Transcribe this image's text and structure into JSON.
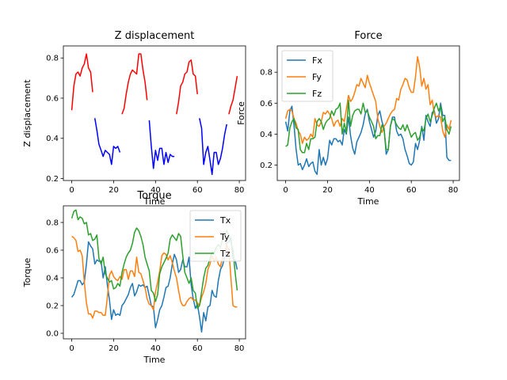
{
  "chart_data": [
    {
      "type": "line",
      "title": "Z displacement",
      "xlabel": "Time",
      "ylabel": "Z displacement",
      "xlim": [
        -4,
        83
      ],
      "ylim": [
        0.19,
        0.86
      ],
      "xticks": [
        0,
        20,
        40,
        60,
        80
      ],
      "yticks": [
        0.2,
        0.4,
        0.6,
        0.8
      ],
      "ytick_labels": [
        "0.2",
        "0.4",
        "0.6",
        "0.8"
      ],
      "legend": "none",
      "colors": {
        "red": "#ff0000",
        "blue": "#0000ff"
      },
      "segments": [
        {
          "color": "red",
          "x": [
            0,
            1,
            2,
            3,
            4,
            5,
            6,
            7,
            8,
            9,
            10
          ],
          "y": [
            0.54,
            0.66,
            0.72,
            0.73,
            0.71,
            0.75,
            0.77,
            0.82,
            0.75,
            0.73,
            0.63
          ]
        },
        {
          "color": "blue",
          "x": [
            11,
            12,
            13,
            14,
            15,
            16,
            17,
            18,
            19,
            20,
            21,
            22,
            23
          ],
          "y": [
            0.5,
            0.44,
            0.37,
            0.34,
            0.31,
            0.34,
            0.33,
            0.32,
            0.27,
            0.36,
            0.35,
            0.36,
            0.33
          ]
        },
        {
          "color": "red",
          "x": [
            24,
            25,
            26,
            27,
            28,
            29,
            30,
            31,
            32,
            33,
            34,
            35,
            36
          ],
          "y": [
            0.52,
            0.55,
            0.62,
            0.68,
            0.72,
            0.74,
            0.73,
            0.72,
            0.82,
            0.82,
            0.74,
            0.68,
            0.59
          ]
        },
        {
          "color": "blue",
          "x": [
            37,
            38,
            39,
            40,
            41,
            42,
            43,
            44,
            45,
            46,
            47,
            48,
            49
          ],
          "y": [
            0.49,
            0.36,
            0.25,
            0.34,
            0.29,
            0.35,
            0.35,
            0.27,
            0.33,
            0.28,
            0.32,
            0.31,
            0.31
          ]
        },
        {
          "color": "red",
          "x": [
            50,
            51,
            52,
            53,
            54,
            55,
            56,
            57,
            58,
            59,
            60
          ],
          "y": [
            0.52,
            0.58,
            0.66,
            0.68,
            0.72,
            0.73,
            0.78,
            0.79,
            0.72,
            0.71,
            0.62
          ]
        },
        {
          "color": "blue",
          "x": [
            61,
            62,
            63,
            64,
            65,
            66,
            67,
            68,
            69,
            70,
            71,
            72,
            73,
            74
          ],
          "y": [
            0.5,
            0.45,
            0.27,
            0.33,
            0.36,
            0.29,
            0.22,
            0.33,
            0.33,
            0.27,
            0.3,
            0.35,
            0.42,
            0.47
          ]
        },
        {
          "color": "red",
          "x": [
            75,
            76,
            77,
            78,
            79
          ],
          "y": [
            0.52,
            0.56,
            0.59,
            0.65,
            0.71
          ]
        }
      ]
    },
    {
      "type": "line",
      "title": "Force",
      "xlabel": "Time",
      "ylabel": "Force",
      "xlim": [
        -4,
        83
      ],
      "ylim": [
        0.1,
        0.97
      ],
      "xticks": [
        0,
        20,
        40,
        60,
        80
      ],
      "yticks": [
        0.2,
        0.4,
        0.6,
        0.8
      ],
      "ytick_labels": [
        "0.2",
        "0.4",
        "0.6",
        "0.8"
      ],
      "legend": "upper left",
      "series": [
        {
          "name": "Fx",
          "color": "#1f77b4",
          "y": [
            0.48,
            0.42,
            0.55,
            0.58,
            0.46,
            0.3,
            0.2,
            0.21,
            0.17,
            0.2,
            0.24,
            0.19,
            0.21,
            0.22,
            0.16,
            0.14,
            0.3,
            0.2,
            0.25,
            0.2,
            0.24,
            0.36,
            0.33,
            0.37,
            0.37,
            0.35,
            0.36,
            0.33,
            0.43,
            0.4,
            0.51,
            0.39,
            0.31,
            0.27,
            0.35,
            0.38,
            0.41,
            0.46,
            0.53,
            0.56,
            0.48,
            0.43,
            0.38,
            0.42,
            0.52,
            0.55,
            0.48,
            0.44,
            0.27,
            0.3,
            0.45,
            0.51,
            0.51,
            0.42,
            0.39,
            0.4,
            0.37,
            0.3,
            0.26,
            0.21,
            0.2,
            0.22,
            0.34,
            0.3,
            0.36,
            0.45,
            0.36,
            0.52,
            0.48,
            0.45,
            0.54,
            0.55,
            0.47,
            0.5,
            0.6,
            0.52,
            0.52,
            0.25,
            0.23,
            0.23
          ]
        },
        {
          "name": "Fy",
          "color": "#ff7f0e",
          "y": [
            0.5,
            0.55,
            0.56,
            0.55,
            0.5,
            0.47,
            0.42,
            0.4,
            0.34,
            0.38,
            0.36,
            0.37,
            0.4,
            0.38,
            0.5,
            0.46,
            0.45,
            0.48,
            0.54,
            0.53,
            0.55,
            0.53,
            0.5,
            0.45,
            0.48,
            0.49,
            0.45,
            0.5,
            0.48,
            0.56,
            0.65,
            0.61,
            0.63,
            0.67,
            0.72,
            0.71,
            0.76,
            0.73,
            0.7,
            0.78,
            0.73,
            0.69,
            0.65,
            0.61,
            0.5,
            0.45,
            0.41,
            0.45,
            0.47,
            0.5,
            0.53,
            0.55,
            0.56,
            0.63,
            0.62,
            0.69,
            0.72,
            0.76,
            0.75,
            0.7,
            0.67,
            0.67,
            0.77,
            0.9,
            0.83,
            0.71,
            0.76,
            0.69,
            0.72,
            0.59,
            0.62,
            0.53,
            0.51,
            0.52,
            0.51,
            0.42,
            0.38,
            0.46,
            0.43,
            0.49
          ]
        },
        {
          "name": "Fz",
          "color": "#2ca02c",
          "y": [
            0.32,
            0.33,
            0.44,
            0.48,
            0.5,
            0.44,
            0.43,
            0.3,
            0.28,
            0.28,
            0.34,
            0.3,
            0.37,
            0.37,
            0.38,
            0.48,
            0.5,
            0.48,
            0.43,
            0.47,
            0.49,
            0.5,
            0.55,
            0.52,
            0.56,
            0.57,
            0.6,
            0.4,
            0.47,
            0.41,
            0.62,
            0.45,
            0.52,
            0.55,
            0.56,
            0.56,
            0.53,
            0.6,
            0.54,
            0.55,
            0.51,
            0.48,
            0.45,
            0.37,
            0.39,
            0.39,
            0.46,
            0.43,
            0.3,
            0.3,
            0.45,
            0.5,
            0.49,
            0.46,
            0.44,
            0.43,
            0.46,
            0.42,
            0.46,
            0.42,
            0.38,
            0.4,
            0.41,
            0.36,
            0.38,
            0.44,
            0.42,
            0.5,
            0.53,
            0.48,
            0.52,
            0.57,
            0.6,
            0.55,
            0.58,
            0.48,
            0.51,
            0.43,
            0.4,
            0.45
          ]
        }
      ]
    },
    {
      "type": "line",
      "title": "Torque",
      "xlabel": "Time",
      "ylabel": "Torque",
      "xlim": [
        -4,
        83
      ],
      "ylim": [
        -0.04,
        0.92
      ],
      "xticks": [
        0,
        20,
        40,
        60,
        80
      ],
      "yticks": [
        0.0,
        0.2,
        0.4,
        0.6,
        0.8
      ],
      "ytick_labels": [
        "0.0",
        "0.2",
        "0.4",
        "0.6",
        "0.8"
      ],
      "legend": "upper right",
      "series": [
        {
          "name": "Tx",
          "color": "#1f77b4",
          "y": [
            0.26,
            0.28,
            0.33,
            0.38,
            0.38,
            0.35,
            0.37,
            0.5,
            0.66,
            0.63,
            0.61,
            0.5,
            0.53,
            0.52,
            0.52,
            0.4,
            0.48,
            0.35,
            0.24,
            0.1,
            0.17,
            0.13,
            0.14,
            0.13,
            0.2,
            0.22,
            0.25,
            0.28,
            0.33,
            0.36,
            0.27,
            0.3,
            0.35,
            0.34,
            0.35,
            0.33,
            0.34,
            0.27,
            0.2,
            0.19,
            0.04,
            0.1,
            0.17,
            0.2,
            0.26,
            0.33,
            0.34,
            0.4,
            0.5,
            0.57,
            0.53,
            0.44,
            0.46,
            0.53,
            0.48,
            0.48,
            0.55,
            0.35,
            0.25,
            0.18,
            0.21,
            0.12,
            0.01,
            0.15,
            0.09,
            0.19,
            0.2,
            0.31,
            0.27,
            0.26,
            0.38,
            0.46,
            0.49,
            0.55,
            0.65,
            0.66,
            0.69,
            0.54,
            0.53,
            0.46
          ]
        },
        {
          "name": "Ty",
          "color": "#ff7f0e",
          "y": [
            0.7,
            0.69,
            0.67,
            0.59,
            0.6,
            0.56,
            0.37,
            0.22,
            0.14,
            0.14,
            0.11,
            0.16,
            0.16,
            0.15,
            0.15,
            0.13,
            0.13,
            0.26,
            0.42,
            0.45,
            0.41,
            0.39,
            0.38,
            0.41,
            0.39,
            0.46,
            0.46,
            0.39,
            0.45,
            0.45,
            0.41,
            0.55,
            0.44,
            0.43,
            0.38,
            0.33,
            0.25,
            0.21,
            0.2,
            0.17,
            0.3,
            0.37,
            0.45,
            0.56,
            0.58,
            0.57,
            0.53,
            0.56,
            0.51,
            0.45,
            0.4,
            0.31,
            0.23,
            0.2,
            0.2,
            0.23,
            0.25,
            0.26,
            0.24,
            0.24,
            0.22,
            0.2,
            0.26,
            0.3,
            0.36,
            0.46,
            0.5,
            0.56,
            0.52,
            0.55,
            0.5,
            0.48,
            0.55,
            0.58,
            0.64,
            0.6,
            0.4,
            0.2,
            0.19,
            0.19
          ]
        },
        {
          "name": "Tz",
          "color": "#2ca02c",
          "y": [
            0.83,
            0.88,
            0.89,
            0.82,
            0.84,
            0.83,
            0.79,
            0.8,
            0.71,
            0.72,
            0.67,
            0.68,
            0.71,
            0.54,
            0.5,
            0.55,
            0.43,
            0.4,
            0.37,
            0.38,
            0.32,
            0.33,
            0.36,
            0.34,
            0.44,
            0.5,
            0.55,
            0.58,
            0.6,
            0.65,
            0.73,
            0.76,
            0.74,
            0.7,
            0.64,
            0.55,
            0.5,
            0.45,
            0.31,
            0.29,
            0.23,
            0.28,
            0.43,
            0.48,
            0.51,
            0.54,
            0.58,
            0.68,
            0.71,
            0.69,
            0.67,
            0.72,
            0.7,
            0.56,
            0.44,
            0.4,
            0.36,
            0.4,
            0.31,
            0.29,
            0.18,
            0.2,
            0.3,
            0.4,
            0.47,
            0.49,
            0.54,
            0.59,
            0.58,
            0.62,
            0.64,
            0.62,
            0.68,
            0.72,
            0.74,
            0.71,
            0.66,
            0.6,
            0.44,
            0.31
          ]
        }
      ]
    }
  ]
}
